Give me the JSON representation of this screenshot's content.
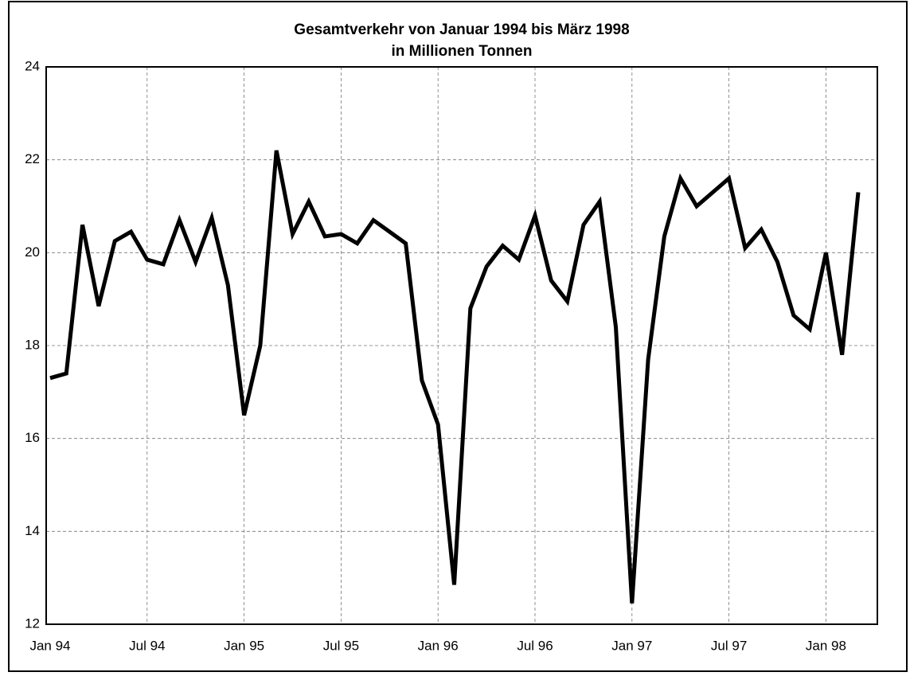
{
  "chart_data": {
    "type": "line",
    "title": "Gesamtverkehr von Januar 1994 bis März 1998",
    "subtitle": "in Millionen Tonnen",
    "categories": [
      "Jan 94",
      null,
      null,
      null,
      null,
      null,
      "Jul 94",
      null,
      null,
      null,
      null,
      null,
      "Jan 95",
      null,
      null,
      null,
      null,
      null,
      "Jul 95",
      null,
      null,
      null,
      null,
      null,
      "Jan 96",
      null,
      null,
      null,
      null,
      null,
      "Jul 96",
      null,
      null,
      null,
      null,
      null,
      "Jan 97",
      null,
      null,
      null,
      null,
      null,
      "Jul 97",
      null,
      null,
      null,
      null,
      null,
      "Jan 98",
      null,
      null
    ],
    "series": [
      {
        "name": "Gesamtverkehr",
        "color": "#000000",
        "values": [
          17.3,
          17.4,
          20.6,
          18.85,
          20.25,
          20.45,
          19.85,
          19.75,
          20.7,
          19.8,
          20.75,
          19.3,
          16.5,
          18.0,
          22.2,
          20.4,
          21.1,
          20.35,
          20.4,
          20.2,
          20.7,
          20.45,
          20.2,
          17.25,
          16.3,
          12.85,
          18.8,
          19.7,
          20.15,
          19.85,
          20.8,
          19.4,
          18.95,
          20.6,
          21.1,
          18.4,
          12.45,
          17.7,
          20.35,
          21.6,
          21.0,
          21.3,
          21.6,
          20.1,
          20.5,
          19.8,
          18.65,
          18.35,
          20.0,
          17.8,
          21.3
        ]
      }
    ],
    "ylim": [
      12,
      24
    ],
    "yticks": [
      12,
      14,
      16,
      18,
      20,
      22,
      24
    ],
    "grid": true
  }
}
